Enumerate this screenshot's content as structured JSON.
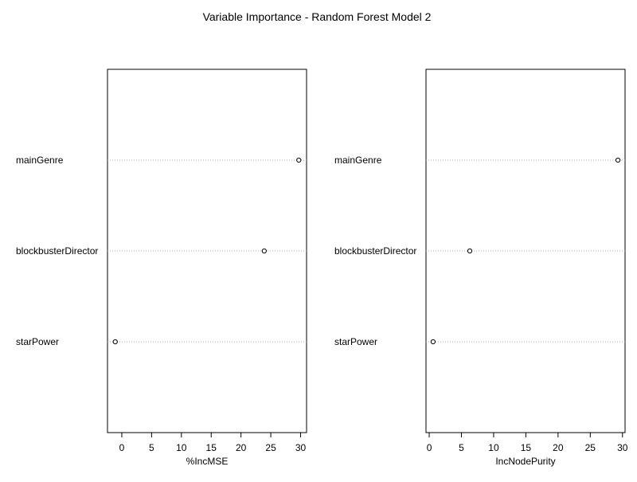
{
  "title": "Variable Importance - Random Forest Model 2",
  "chart_data": [
    {
      "type": "scatter",
      "subtype": "dotchart",
      "xlabel": "%IncMSE",
      "categories": [
        "mainGenre",
        "blockbusterDirector",
        "starPower"
      ],
      "values": [
        29.7,
        23.9,
        -1.1
      ],
      "xticks": [
        0,
        5,
        10,
        15,
        20,
        25,
        30
      ],
      "xlim": [
        -2.4,
        31.0
      ],
      "grid": "dotted-horizontal"
    },
    {
      "type": "scatter",
      "subtype": "dotchart",
      "xlabel": "IncNodePurity",
      "categories": [
        "mainGenre",
        "blockbusterDirector",
        "starPower"
      ],
      "values": [
        29.3,
        6.3,
        0.6
      ],
      "xticks": [
        0,
        5,
        10,
        15,
        20,
        25,
        30
      ],
      "xlim": [
        -0.5,
        30.4
      ],
      "grid": "dotted-horizontal"
    }
  ]
}
